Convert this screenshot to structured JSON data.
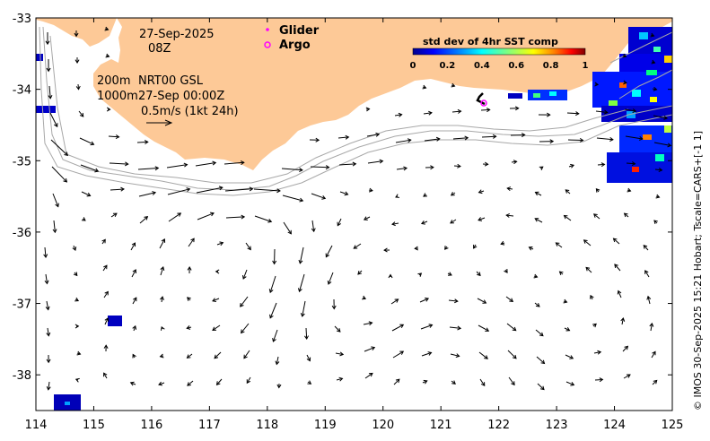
{
  "map": {
    "date_line": "27-Sep-2025",
    "time_line": "08Z",
    "depth_line": "200m",
    "product_line": "NRT00 GSL",
    "isobath_line": "1000m",
    "valid_line": "27-Sep 00:00Z",
    "scale_line": "0.5m/s (1kt 24h)",
    "credit": "© IMOS 30-Sep-2025 15:21 Hobart; Tscale=CARS+[-1 1]"
  },
  "legend": {
    "glider_label": "Glider",
    "argo_label": "Argo",
    "glider_color": "#ff00ff",
    "argo_color": "#ff00ff"
  },
  "colorbar": {
    "title": "std dev of 4hr SST comp",
    "tick_labels": [
      "0",
      "0.2",
      "0.4",
      "0.6",
      "0.8",
      "1"
    ],
    "colormap": [
      "#00008f",
      "#0000ff",
      "#00a0ff",
      "#00ffff",
      "#80ff80",
      "#ffff00",
      "#ff8000",
      "#ff0000",
      "#800000"
    ]
  },
  "colors": {
    "land": "#fdc997",
    "ocean": "#ffffff",
    "arrow": "#000000",
    "isobath": "#a0a0a0"
  },
  "chart_data": {
    "type": "map",
    "x_axis": {
      "unit": "degrees longitude",
      "range": [
        114,
        125
      ],
      "ticks": [
        "114",
        "115",
        "116",
        "117",
        "118",
        "119",
        "120",
        "121",
        "122",
        "123",
        "124",
        "125"
      ]
    },
    "y_axis": {
      "unit": "degrees latitude",
      "range": [
        -38.5,
        -33
      ],
      "ticks": [
        "-33",
        "-34",
        "-35",
        "-36",
        "-37",
        "-38"
      ]
    },
    "grid": false,
    "argo_float": {
      "lon": 121.75,
      "lat": -34.2
    }
  }
}
